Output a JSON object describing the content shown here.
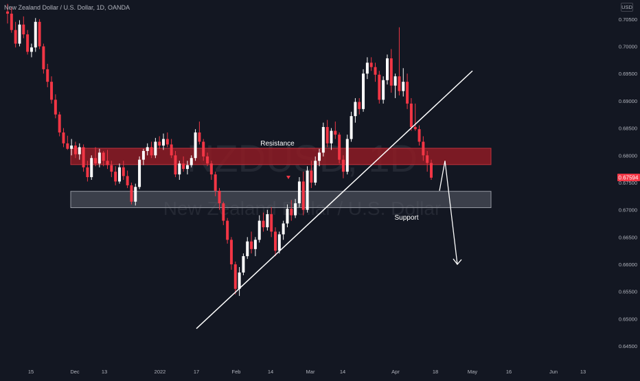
{
  "header": {
    "title": "New Zealand Dollar / U.S. Dollar, 1D, OANDA",
    "currency": "USD"
  },
  "watermark": {
    "symbol": "NZDUSD, 1D",
    "description": "New Zealand Dollar / U.S. Dollar"
  },
  "annotations": {
    "resistance_label": "Resistance",
    "support_label": "Support"
  },
  "colors": {
    "background": "#131722",
    "up": "#ffffff",
    "down": "#f23645",
    "resistance_zone": "#8e1b24",
    "support_zone": "#5d606b",
    "price_badge": "#f23645",
    "line": "#ffffff",
    "axis_text": "#b2b5be"
  },
  "chart_data": {
    "type": "candlestick",
    "instrument": "NZDUSD",
    "timeframe": "1D",
    "y_ticks": [
      "0.70500",
      "0.70000",
      "0.69500",
      "0.69000",
      "0.68500",
      "0.68000",
      "0.67500",
      "0.67000",
      "0.66500",
      "0.66000",
      "0.65500",
      "0.65000",
      "0.64500"
    ],
    "x_ticks": [
      "15",
      "Dec",
      "13",
      "2022",
      "17",
      "Feb",
      "14",
      "Mar",
      "14",
      "Apr",
      "18",
      "May",
      "16",
      "Jun",
      "13"
    ],
    "ylim": [
      0.643,
      0.7075
    ],
    "last_price": "0.67594",
    "zones": [
      {
        "name": "resistance",
        "from": 0.6783,
        "to": 0.6813
      },
      {
        "name": "support",
        "from": 0.6704,
        "to": 0.6734
      }
    ],
    "trendline": {
      "from": [
        0,
        0.6482
      ],
      "to": [
        1,
        0.6955
      ]
    },
    "projection_arrow": {
      "from": 0.679,
      "via": 0.6735,
      "to": 0.66
    },
    "candles": [
      [
        0.7064,
        0.7078,
        0.7042,
        0.706
      ],
      [
        0.706,
        0.7072,
        0.7025,
        0.703
      ],
      [
        0.703,
        0.7045,
        0.6998,
        0.7005
      ],
      [
        0.7005,
        0.7048,
        0.7,
        0.704
      ],
      [
        0.704,
        0.7055,
        0.7015,
        0.7022
      ],
      [
        0.7022,
        0.703,
        0.6985,
        0.699
      ],
      [
        0.699,
        0.7005,
        0.698,
        0.6998
      ],
      [
        0.6998,
        0.7052,
        0.699,
        0.7045
      ],
      [
        0.7045,
        0.705,
        0.6995,
        0.7
      ],
      [
        0.7,
        0.7005,
        0.695,
        0.6958
      ],
      [
        0.6958,
        0.6968,
        0.6925,
        0.6935
      ],
      [
        0.6935,
        0.6945,
        0.6895,
        0.6902
      ],
      [
        0.6902,
        0.6912,
        0.6868,
        0.6875
      ],
      [
        0.6875,
        0.688,
        0.6835,
        0.6842
      ],
      [
        0.6842,
        0.685,
        0.6815,
        0.6822
      ],
      [
        0.6822,
        0.6836,
        0.681,
        0.6812
      ],
      [
        0.6812,
        0.683,
        0.68,
        0.6818
      ],
      [
        0.6818,
        0.6825,
        0.6795,
        0.6802
      ],
      [
        0.6802,
        0.6822,
        0.6792,
        0.6815
      ],
      [
        0.6815,
        0.682,
        0.677,
        0.6778
      ],
      [
        0.6778,
        0.679,
        0.6752,
        0.676
      ],
      [
        0.676,
        0.68,
        0.6755,
        0.6795
      ],
      [
        0.6795,
        0.6815,
        0.678,
        0.6785
      ],
      [
        0.6785,
        0.6812,
        0.6778,
        0.6805
      ],
      [
        0.6805,
        0.6808,
        0.678,
        0.679
      ],
      [
        0.679,
        0.681,
        0.6775,
        0.6782
      ],
      [
        0.6782,
        0.679,
        0.676,
        0.677
      ],
      [
        0.677,
        0.678,
        0.6745,
        0.6752
      ],
      [
        0.6752,
        0.6785,
        0.6748,
        0.6778
      ],
      [
        0.6778,
        0.679,
        0.6755,
        0.6762
      ],
      [
        0.6762,
        0.6772,
        0.674,
        0.6745
      ],
      [
        0.6745,
        0.675,
        0.671,
        0.6715
      ],
      [
        0.6715,
        0.6748,
        0.6708,
        0.6742
      ],
      [
        0.6742,
        0.6798,
        0.6738,
        0.6792
      ],
      [
        0.6792,
        0.6812,
        0.6782,
        0.6808
      ],
      [
        0.6808,
        0.6822,
        0.68,
        0.6815
      ],
      [
        0.6815,
        0.6825,
        0.6795,
        0.68
      ],
      [
        0.68,
        0.6832,
        0.6795,
        0.6825
      ],
      [
        0.6825,
        0.6835,
        0.6812,
        0.6818
      ],
      [
        0.6818,
        0.684,
        0.681,
        0.683
      ],
      [
        0.683,
        0.6842,
        0.6815,
        0.682
      ],
      [
        0.682,
        0.683,
        0.6795,
        0.68
      ],
      [
        0.68,
        0.6808,
        0.676,
        0.6765
      ],
      [
        0.6765,
        0.679,
        0.6755,
        0.6785
      ],
      [
        0.6785,
        0.6798,
        0.677,
        0.6775
      ],
      [
        0.6775,
        0.679,
        0.6765,
        0.6782
      ],
      [
        0.6782,
        0.68,
        0.6778,
        0.6795
      ],
      [
        0.6795,
        0.6848,
        0.679,
        0.6842
      ],
      [
        0.6842,
        0.6862,
        0.682,
        0.6825
      ],
      [
        0.6825,
        0.683,
        0.679,
        0.6798
      ],
      [
        0.6798,
        0.6805,
        0.678,
        0.6785
      ],
      [
        0.6785,
        0.679,
        0.6755,
        0.6765
      ],
      [
        0.6765,
        0.677,
        0.6725,
        0.6735
      ],
      [
        0.6735,
        0.674,
        0.67,
        0.6712
      ],
      [
        0.6712,
        0.6715,
        0.6672,
        0.668
      ],
      [
        0.668,
        0.6685,
        0.6638,
        0.6645
      ],
      [
        0.6645,
        0.665,
        0.659,
        0.66
      ],
      [
        0.66,
        0.6605,
        0.6545,
        0.6555
      ],
      [
        0.6555,
        0.6595,
        0.6542,
        0.6585
      ],
      [
        0.6585,
        0.662,
        0.658,
        0.6615
      ],
      [
        0.6615,
        0.665,
        0.661,
        0.6642
      ],
      [
        0.6642,
        0.666,
        0.662,
        0.6628
      ],
      [
        0.6628,
        0.665,
        0.6615,
        0.6645
      ],
      [
        0.6645,
        0.669,
        0.664,
        0.668
      ],
      [
        0.668,
        0.6695,
        0.666,
        0.6668
      ],
      [
        0.6668,
        0.67,
        0.6662,
        0.6692
      ],
      [
        0.6692,
        0.6705,
        0.665,
        0.666
      ],
      [
        0.666,
        0.6668,
        0.6615,
        0.6625
      ],
      [
        0.6625,
        0.666,
        0.662,
        0.6655
      ],
      [
        0.6655,
        0.668,
        0.6645,
        0.6675
      ],
      [
        0.6675,
        0.671,
        0.6668,
        0.6702
      ],
      [
        0.6702,
        0.6718,
        0.668,
        0.669
      ],
      [
        0.669,
        0.672,
        0.6685,
        0.6712
      ],
      [
        0.6712,
        0.676,
        0.6705,
        0.6752
      ],
      [
        0.6752,
        0.677,
        0.669,
        0.67
      ],
      [
        0.67,
        0.678,
        0.6695,
        0.6772
      ],
      [
        0.6772,
        0.679,
        0.674,
        0.675
      ],
      [
        0.675,
        0.6798,
        0.6745,
        0.679
      ],
      [
        0.679,
        0.6812,
        0.678,
        0.6805
      ],
      [
        0.6805,
        0.686,
        0.6798,
        0.6852
      ],
      [
        0.6852,
        0.6865,
        0.6815,
        0.6822
      ],
      [
        0.6822,
        0.685,
        0.681,
        0.6845
      ],
      [
        0.6845,
        0.6862,
        0.683,
        0.6838
      ],
      [
        0.6838,
        0.6842,
        0.6785,
        0.6792
      ],
      [
        0.6792,
        0.68,
        0.6758,
        0.677
      ],
      [
        0.677,
        0.6838,
        0.6765,
        0.683
      ],
      [
        0.683,
        0.688,
        0.6825,
        0.6872
      ],
      [
        0.6872,
        0.6905,
        0.686,
        0.6898
      ],
      [
        0.6898,
        0.6905,
        0.6875,
        0.6885
      ],
      [
        0.6885,
        0.6958,
        0.688,
        0.695
      ],
      [
        0.695,
        0.698,
        0.694,
        0.697
      ],
      [
        0.697,
        0.698,
        0.6955,
        0.6962
      ],
      [
        0.6962,
        0.697,
        0.6935,
        0.6948
      ],
      [
        0.6948,
        0.6955,
        0.6895,
        0.6902
      ],
      [
        0.6902,
        0.6945,
        0.6895,
        0.6938
      ],
      [
        0.6938,
        0.6985,
        0.693,
        0.6978
      ],
      [
        0.6978,
        0.6995,
        0.6915,
        0.6928
      ],
      [
        0.6928,
        0.695,
        0.6905,
        0.6945
      ],
      [
        0.6945,
        0.7035,
        0.691,
        0.6918
      ],
      [
        0.6918,
        0.696,
        0.6908,
        0.6935
      ],
      [
        0.6935,
        0.695,
        0.6885,
        0.6895
      ],
      [
        0.6895,
        0.6905,
        0.6845,
        0.6852
      ],
      [
        0.6852,
        0.6895,
        0.6845,
        0.6848
      ],
      [
        0.6848,
        0.6855,
        0.6818,
        0.6825
      ],
      [
        0.6825,
        0.6835,
        0.679,
        0.68
      ],
      [
        0.68,
        0.6808,
        0.677,
        0.6786
      ],
      [
        0.6786,
        0.6792,
        0.6755,
        0.6759
      ]
    ]
  }
}
